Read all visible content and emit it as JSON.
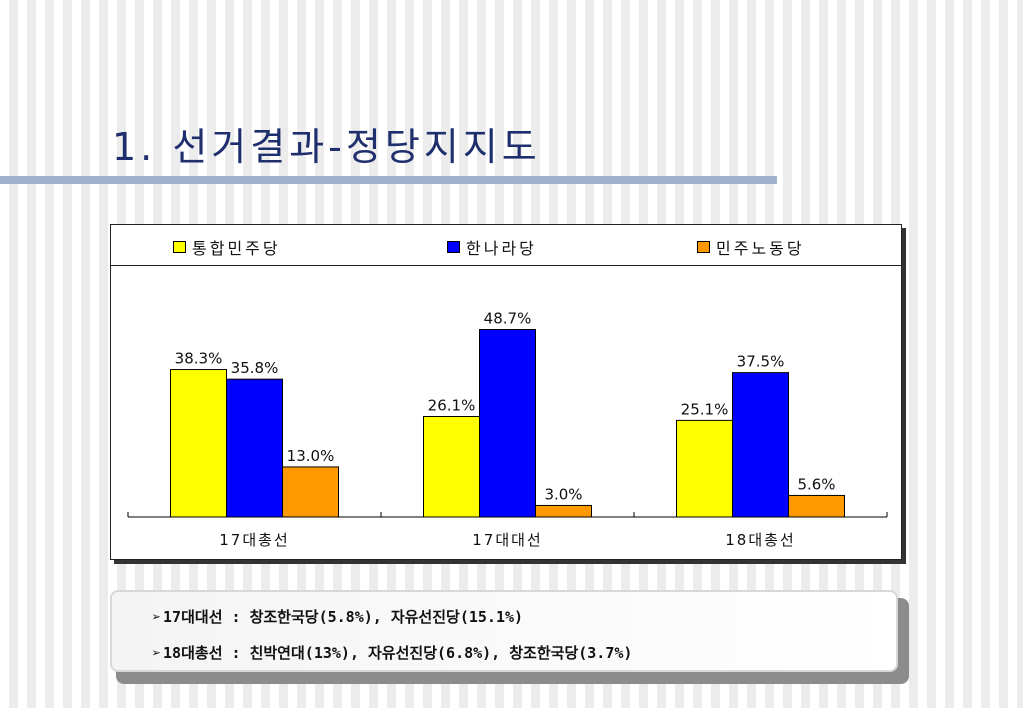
{
  "slide": {
    "title": "1. 선거결과-정당지지도"
  },
  "chart_data": {
    "type": "bar",
    "categories": [
      "17대총선",
      "17대대선",
      "18대총선"
    ],
    "series": [
      {
        "name": "통합민주당",
        "values": [
          38.3,
          26.1,
          25.1
        ],
        "labels": [
          "38.3%",
          "26.1%",
          "25.1%"
        ],
        "color": "#ffff00"
      },
      {
        "name": "한나라당",
        "values": [
          35.8,
          48.7,
          37.5
        ],
        "labels": [
          "35.8%",
          "48.7%",
          "37.5%"
        ],
        "color": "#0000ff"
      },
      {
        "name": "민주노동당",
        "values": [
          13.0,
          3.0,
          5.6
        ],
        "labels": [
          "13.0%",
          "3.0%",
          "5.6%"
        ],
        "color": "#ff9900"
      }
    ],
    "ylim": [
      0,
      60
    ],
    "legend_position": "top",
    "grid": false
  },
  "notes": [
    {
      "marker": "➢",
      "text": "17대대선 : 창조한국당(5.8%), 자유선진당(15.1%)"
    },
    {
      "marker": "➢",
      "text": "18대총선 : 친박연대(13%), 자유선진당(6.8%), 창조한국당(3.7%)"
    }
  ]
}
